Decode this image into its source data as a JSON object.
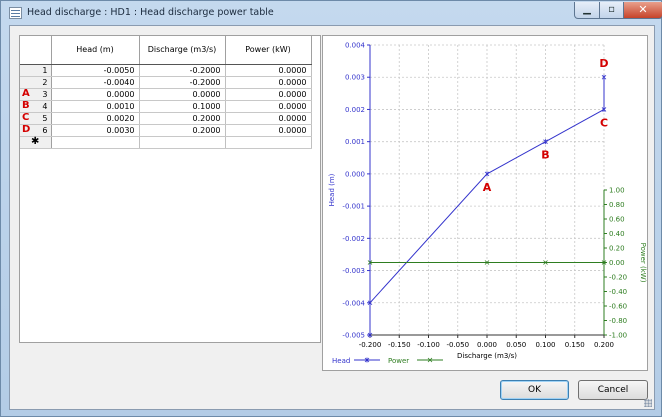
{
  "window": {
    "title": "Head discharge : HD1 : Head discharge power table",
    "minimize_glyph": "▁",
    "maximize_glyph": "▫",
    "close_glyph": "✕"
  },
  "table": {
    "columns": [
      "Head (m)",
      "Discharge (m3/s)",
      "Power (kW)"
    ],
    "rows": [
      {
        "num": "1",
        "marker": "",
        "head": "-0.0050",
        "discharge": "-0.2000",
        "power": "0.0000"
      },
      {
        "num": "2",
        "marker": "",
        "head": "-0.0040",
        "discharge": "-0.2000",
        "power": "0.0000"
      },
      {
        "num": "3",
        "marker": "A",
        "head": "0.0000",
        "discharge": "0.0000",
        "power": "0.0000"
      },
      {
        "num": "4",
        "marker": "B",
        "head": "0.0010",
        "discharge": "0.1000",
        "power": "0.0000"
      },
      {
        "num": "5",
        "marker": "C",
        "head": "0.0020",
        "discharge": "0.2000",
        "power": "0.0000"
      },
      {
        "num": "6",
        "marker": "D",
        "head": "0.0030",
        "discharge": "0.2000",
        "power": "0.0000"
      }
    ],
    "new_row_glyph": "✱"
  },
  "chart_data": {
    "type": "line",
    "xlabel": "Discharge (m3/s)",
    "ylabel": "Head (m)",
    "y2label": "Power (kW)",
    "xlim": [
      -0.2,
      0.2
    ],
    "ylim": [
      -0.005,
      0.004
    ],
    "y2lim": [
      -1.0,
      1.0
    ],
    "x_ticks": [
      "-0.200",
      "-0.150",
      "-0.100",
      "-0.050",
      "0.000",
      "0.050",
      "0.100",
      "0.150",
      "0.200"
    ],
    "y_ticks": [
      "0.004",
      "0.003",
      "0.002",
      "0.001",
      "0.000",
      "-0.001",
      "-0.002",
      "-0.003",
      "-0.004",
      "-0.005"
    ],
    "y2_ticks": [
      "1.00",
      "0.80",
      "0.60",
      "0.40",
      "0.20",
      "0.00",
      "-0.20",
      "-0.40",
      "-0.60",
      "-0.80",
      "-1.00"
    ],
    "grid": true,
    "series": [
      {
        "name": "Head",
        "color": "#3333cc",
        "axis": "left",
        "x": [
          -0.2,
          -0.2,
          0.0,
          0.1,
          0.2,
          0.2
        ],
        "y": [
          -0.005,
          -0.004,
          0.0,
          0.001,
          0.002,
          0.003
        ]
      },
      {
        "name": "Power",
        "color": "#2e7d20",
        "axis": "right",
        "x": [
          -0.2,
          0.0,
          0.1,
          0.2
        ],
        "y": [
          0.0,
          0.0,
          0.0,
          0.0
        ]
      }
    ],
    "annotations": [
      {
        "text": "A",
        "x": 0.0,
        "y": 0.0
      },
      {
        "text": "B",
        "x": 0.1,
        "y": 0.001
      },
      {
        "text": "C",
        "x": 0.2,
        "y": 0.002
      },
      {
        "text": "D",
        "x": 0.2,
        "y": 0.003
      }
    ],
    "annotation_color": "#d40000",
    "legend": "bottom-left"
  },
  "buttons": {
    "ok": "OK",
    "cancel": "Cancel"
  }
}
